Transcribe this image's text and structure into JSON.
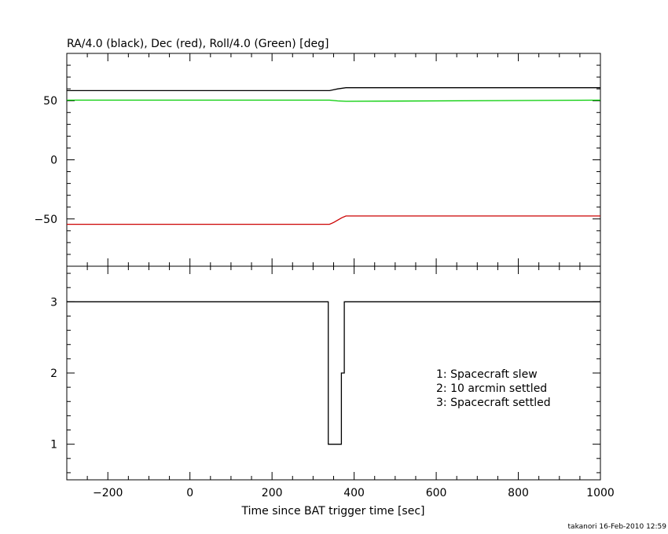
{
  "chart_data": [
    {
      "type": "line",
      "title": "RA/4.0 (black), Dec (red), Roll/4.0 (Green) [deg]",
      "xlim": [
        -300,
        1000
      ],
      "ylim": [
        -90,
        90
      ],
      "yticks": [
        50,
        0,
        -50
      ],
      "ytick_labels": [
        "50",
        "0",
        "−50"
      ],
      "grid": false,
      "series": [
        {
          "color": "#000000",
          "x": [
            -300,
            340,
            360,
            380,
            1000
          ],
          "y": [
            58.5,
            58.5,
            60,
            61,
            61
          ]
        },
        {
          "color": "#00cc00",
          "x": [
            -300,
            340,
            360,
            380,
            1000
          ],
          "y": [
            50.5,
            50.5,
            49.8,
            49.5,
            50.5
          ]
        },
        {
          "color": "#cc0000",
          "x": [
            -300,
            340,
            350,
            360,
            370,
            380,
            1000
          ],
          "y": [
            -54.5,
            -54.5,
            -53,
            -51,
            -49,
            -47.5,
            -47.5
          ]
        }
      ]
    },
    {
      "type": "line",
      "xlabel": "Time since BAT trigger time [sec]",
      "xlim": [
        -300,
        1000
      ],
      "ylim": [
        0.5,
        3.5
      ],
      "xticks": [
        -200,
        0,
        200,
        400,
        600,
        800,
        1000
      ],
      "xtick_labels": [
        "−200",
        "0",
        "200",
        "400",
        "600",
        "800",
        "1000"
      ],
      "yticks": [
        3,
        2,
        1
      ],
      "ytick_labels": [
        "3",
        "2",
        "1"
      ],
      "grid": false,
      "series": [
        {
          "color": "#000000",
          "x": [
            -300,
            337,
            337,
            369,
            369,
            376,
            376,
            1000
          ],
          "y": [
            3,
            3,
            1,
            1,
            2,
            2,
            3,
            3
          ]
        }
      ],
      "annotations": [
        "1: Spacecraft slew",
        "2: 10 arcmin settled",
        "3: Spacecraft settled"
      ]
    }
  ],
  "footer": "takanori 16-Feb-2010 12:59"
}
